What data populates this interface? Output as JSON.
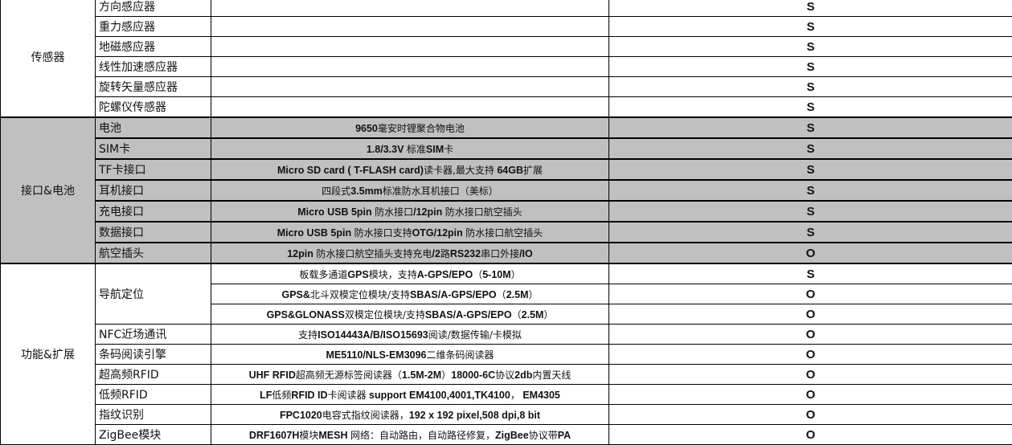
{
  "groups": [
    {
      "category": "传感器",
      "gray": false,
      "rows": [
        {
          "item": "方向感应器",
          "desc": "",
          "value": "S"
        },
        {
          "item": "重力感应器",
          "desc": "",
          "value": "S"
        },
        {
          "item": "地磁感应器",
          "desc": "",
          "value": "S"
        },
        {
          "item": "线性加速感应器",
          "desc": "",
          "value": "S"
        },
        {
          "item": "旋转矢量感应器",
          "desc": "",
          "value": "S"
        },
        {
          "item": "陀螺仪传感器",
          "desc": "",
          "value": "S"
        }
      ]
    },
    {
      "category": "接口&电池",
      "gray": true,
      "rows": [
        {
          "item": "电池",
          "desc": "9650毫安时锂聚合物电池",
          "value": "S"
        },
        {
          "item": "SIM卡",
          "desc": "1.8/3.3V 标准SIM卡",
          "value": "S"
        },
        {
          "item": "TF卡接口",
          "desc": "Micro SD card ( T-FLASH card)读卡器,最大支持 64GB扩展",
          "value": "S"
        },
        {
          "item": "耳机接口",
          "desc": "四段式3.5mm标准防水耳机接口（美标）",
          "value": "S"
        },
        {
          "item": "充电接口",
          "desc": "Micro USB 5pin 防水接口/12pin 防水接口航空插头",
          "value": "S"
        },
        {
          "item": "数据接口",
          "desc": "Micro USB 5pin 防水接口支持OTG/12pin 防水接口航空插头",
          "value": "S"
        },
        {
          "item": "航空插头",
          "desc": "12pin 防水接口航空插头支持充电/2路RS232串口外接/IO",
          "value": "O"
        }
      ]
    },
    {
      "category": "功能&扩展",
      "gray": false,
      "rows": [
        {
          "item": "导航定位",
          "span": 3,
          "desc": "板载多通道GPS模块，支持A-GPS/EPO（5-10M）",
          "value": "S"
        },
        {
          "desc": "GPS&北斗双模定位模块/支持SBAS/A-GPS/EPO（2.5M）",
          "value": "O"
        },
        {
          "desc": "GPS&GLONASS双模定位模块/支持SBAS/A-GPS/EPO（2.5M）",
          "value": "O"
        },
        {
          "item": "NFC近场通讯",
          "desc": "支持ISO14443A/B/ISO15693阅读/数据传输/卡模拟",
          "value": "O"
        },
        {
          "item": "条码阅读引擎",
          "desc": "ME5110/NLS-EM3096二维条码阅读器",
          "value": "O"
        },
        {
          "item": "超高频RFID",
          "desc": "UHF RFID超高频无源标签阅读器（1.5M-2M）18000-6C协议2db内置天线",
          "value": "O"
        },
        {
          "item": "低频RFID",
          "desc": "LF低频RFID ID卡阅读器 support EM4100,4001,TK4100， EM4305",
          "value": "O"
        },
        {
          "item": "指纹识别",
          "desc": "FPC1020电容式指纹阅读器，192 x 192 pixel,508 dpi,8 bit",
          "value": "O"
        },
        {
          "item": "ZigBee模块",
          "desc": "DRF1607H模块MESH 网络：自动路由，自动路径修复，ZigBee协议带PA",
          "value": "O"
        }
      ]
    }
  ]
}
